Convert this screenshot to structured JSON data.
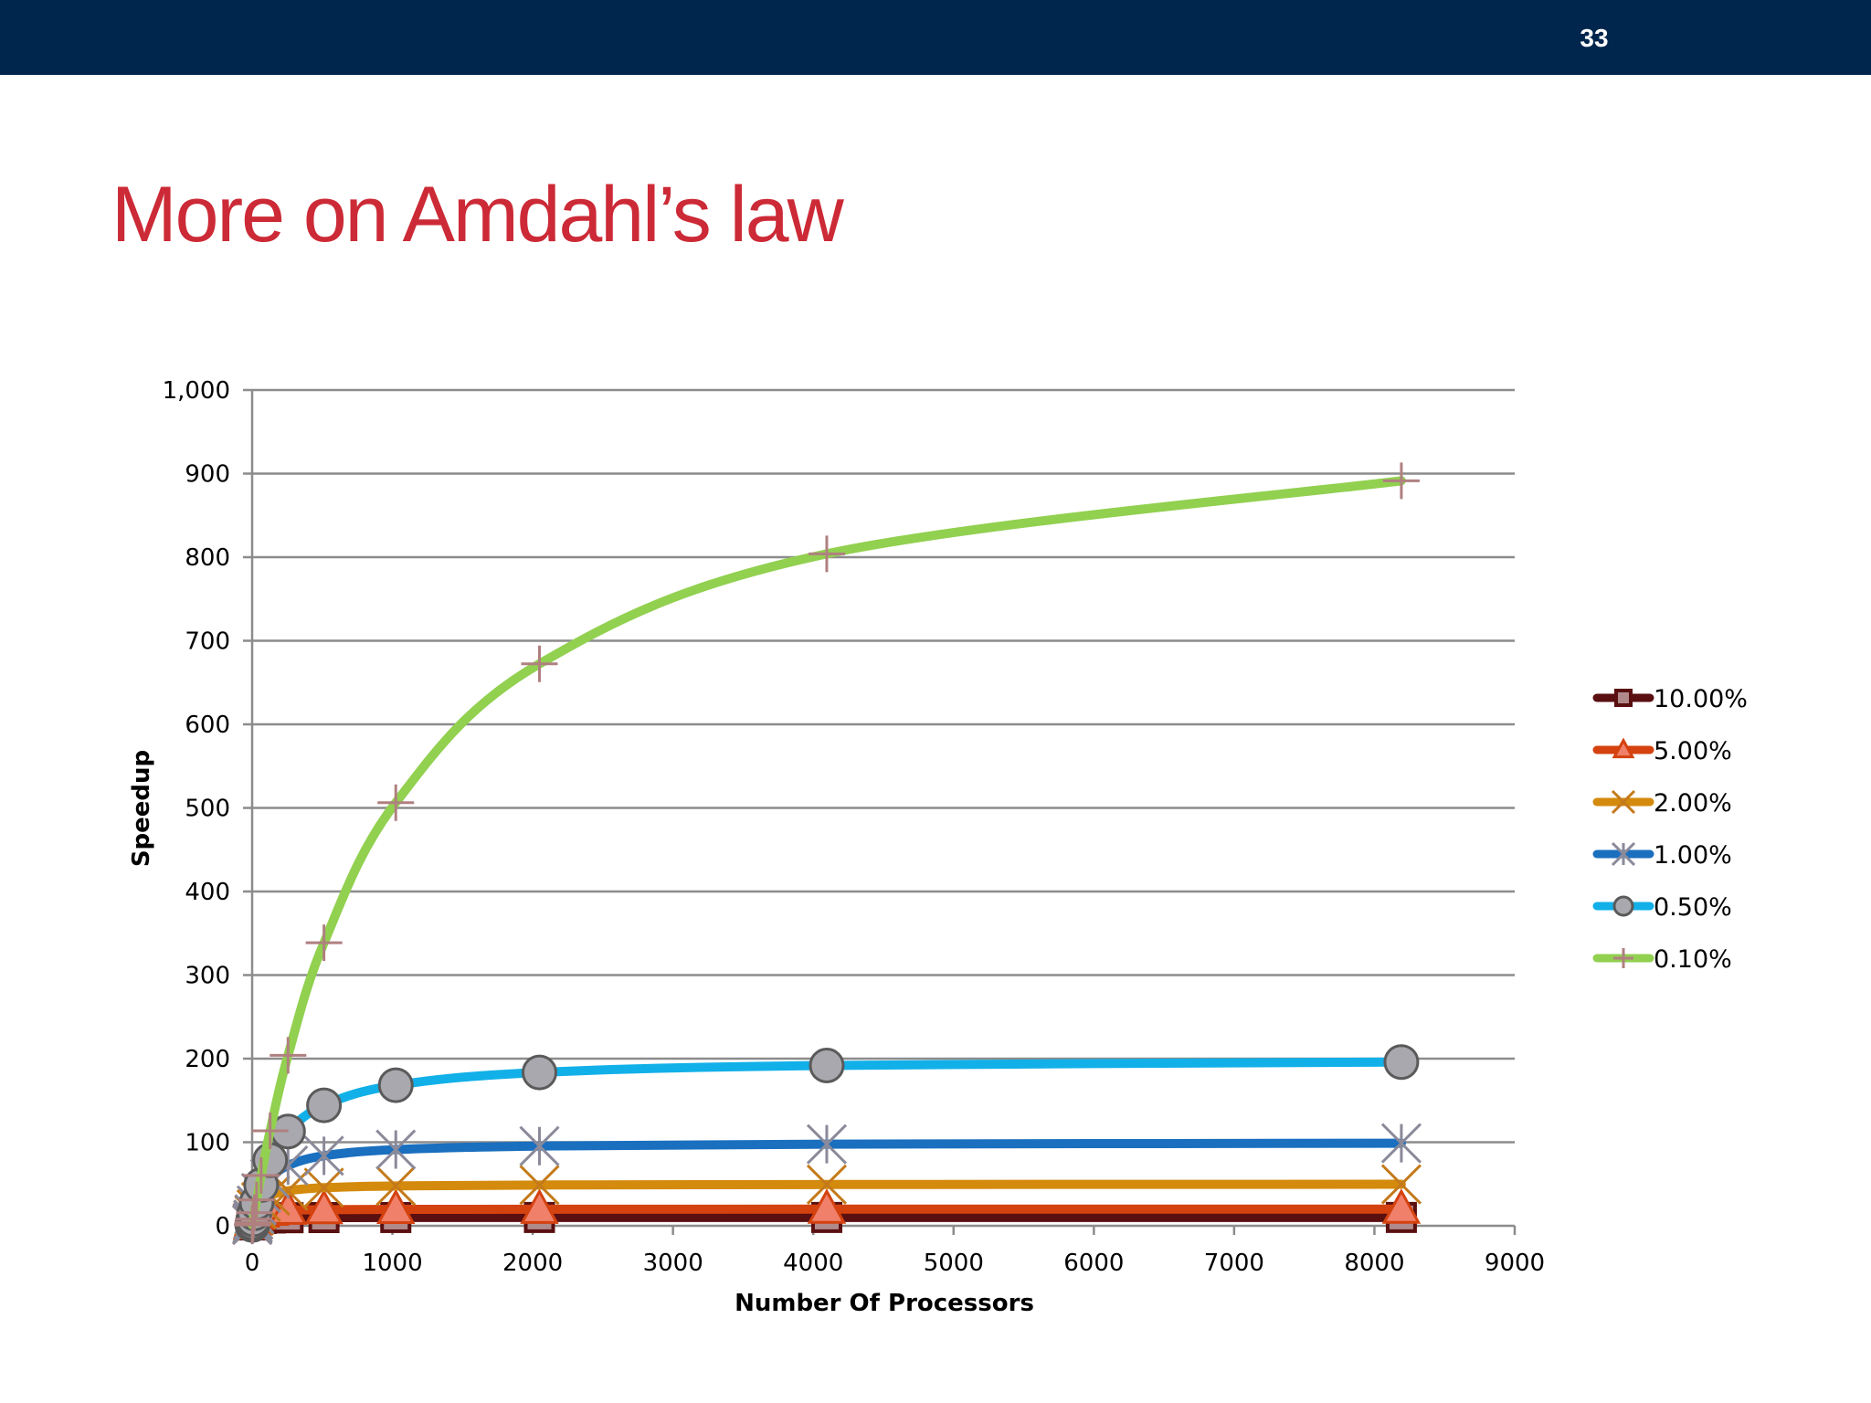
{
  "slide": {
    "number": "33",
    "title": "More on Amdahl’s law"
  },
  "chart_data": {
    "type": "line",
    "xlabel": "Number Of Processors",
    "ylabel": "Speedup",
    "xlim": [
      0,
      9000
    ],
    "ylim": [
      0,
      1000
    ],
    "xticks": [
      0,
      1000,
      2000,
      3000,
      4000,
      5000,
      6000,
      7000,
      8000,
      9000
    ],
    "xtick_labels": [
      "0",
      "1000",
      "2000",
      "3000",
      "4000",
      "5000",
      "6000",
      "7000",
      "8000",
      "9000"
    ],
    "yticks": [
      0,
      100,
      200,
      300,
      400,
      500,
      600,
      700,
      800,
      900,
      1000
    ],
    "ytick_labels": [
      "0",
      "100",
      "200",
      "300",
      "400",
      "500",
      "600",
      "700",
      "800",
      "900",
      "1,000"
    ],
    "grid": "horizontal",
    "legend": "right",
    "x": [
      1,
      2,
      4,
      8,
      16,
      32,
      64,
      128,
      256,
      512,
      1024,
      2048,
      4096,
      8192
    ],
    "series": [
      {
        "name": "10.00%",
        "color": "#5a0f10",
        "marker": "square",
        "marker_color": "#b08a8a",
        "values": [
          1.0,
          1.82,
          3.08,
          4.71,
          6.4,
          7.8,
          8.77,
          9.34,
          9.66,
          9.83,
          9.91,
          9.96,
          9.98,
          9.99
        ]
      },
      {
        "name": "5.00%",
        "color": "#d4420f",
        "marker": "triangle",
        "marker_color": "#f0806a",
        "values": [
          1.0,
          1.9,
          3.48,
          5.93,
          9.14,
          12.55,
          15.42,
          17.41,
          18.62,
          19.28,
          19.63,
          19.81,
          19.91,
          19.95
        ]
      },
      {
        "name": "2.00%",
        "color": "#d48a0c",
        "marker": "x",
        "marker_color": "#c47a1a",
        "values": [
          1.0,
          1.96,
          3.77,
          7.02,
          12.31,
          19.75,
          28.32,
          36.16,
          41.97,
          45.63,
          47.68,
          48.82,
          49.4,
          49.7
        ]
      },
      {
        "name": "1.00%",
        "color": "#1a6fbf",
        "marker": "star",
        "marker_color": "#8a8a9a",
        "values": [
          1.0,
          1.98,
          3.88,
          7.48,
          13.91,
          24.43,
          39.26,
          56.39,
          72.11,
          83.8,
          91.19,
          95.38,
          97.66,
          98.81
        ]
      },
      {
        "name": "0.50%",
        "color": "#12b0e8",
        "marker": "circle",
        "marker_color": "#a8a8ae",
        "values": [
          1.0,
          1.99,
          3.94,
          7.72,
          14.88,
          27.7,
          48.71,
          78.5,
          112.88,
          144.15,
          168.2,
          183.49,
          191.8,
          195.97
        ]
      },
      {
        "name": "0.10%",
        "color": "#92d050",
        "marker": "plus",
        "marker_color": "#b08080",
        "values": [
          1.0,
          2.0,
          3.99,
          7.94,
          15.76,
          31.04,
          60.21,
          113.6,
          203.98,
          338.6,
          506.3,
          672.4,
          804.0,
          891.4
        ]
      }
    ]
  }
}
